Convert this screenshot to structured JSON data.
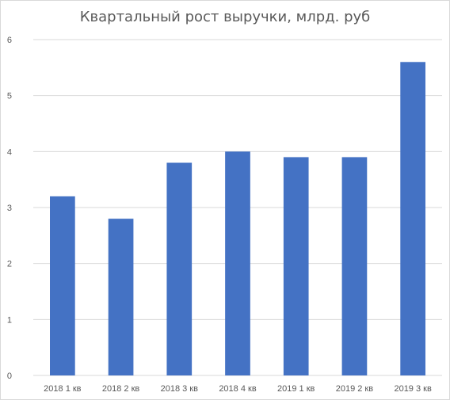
{
  "chart_data": {
    "type": "bar",
    "title": "Квартальный рост выручки, млрд. руб",
    "categories": [
      "2018 1 кв",
      "2018 2 кв",
      "2018 3 кв",
      "2018 4 кв",
      "2019 1 кв",
      "2019 2 кв",
      "2019 3 кв"
    ],
    "values": [
      3.2,
      2.8,
      3.8,
      4.0,
      3.9,
      3.9,
      5.6
    ],
    "ylim": [
      0,
      6
    ],
    "yticks": [
      "0",
      "1",
      "2",
      "3",
      "4",
      "5",
      "6"
    ],
    "grid": true,
    "legend": "none",
    "bar_color": "#4472c4",
    "grid_color": "#d9d9d9"
  }
}
